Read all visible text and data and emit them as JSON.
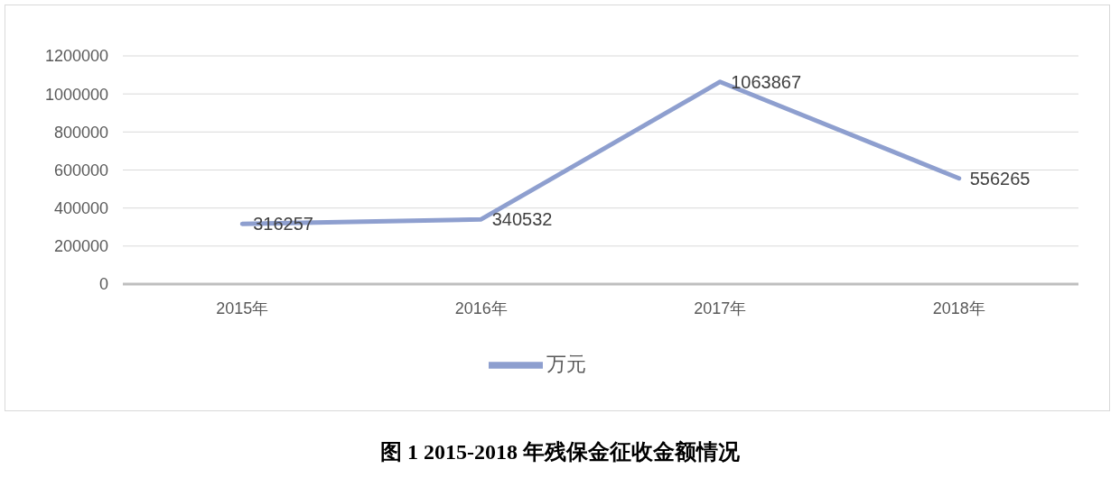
{
  "chart_data": {
    "type": "line",
    "title": "图 1  2015-2018 年残保金征收金额情况",
    "categories": [
      "2015年",
      "2016年",
      "2017年",
      "2018年"
    ],
    "series": [
      {
        "name": "万元",
        "color": "#8e9fcf",
        "values": [
          316257,
          340532,
          1063867,
          556265
        ]
      }
    ],
    "ylim": [
      0,
      1200000
    ],
    "yticks": [
      0,
      200000,
      400000,
      600000,
      800000,
      1000000,
      1200000
    ],
    "grid": "y",
    "legend": "bottom",
    "data_labels": true,
    "marker": "none",
    "line_style": "solid"
  }
}
